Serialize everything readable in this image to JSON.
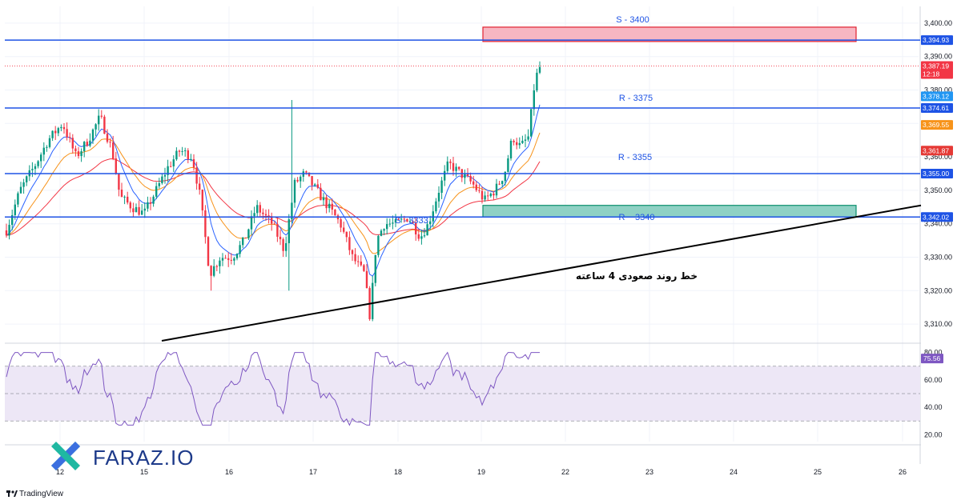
{
  "branding": {
    "logo_text": "FARAZ.IO",
    "platform": "TradingView"
  },
  "colors": {
    "level_line": "#1e53e5",
    "trendline": "#000000",
    "supply_fill": "#f7b6c2",
    "supply_border": "#e0202f",
    "demand_fill": "#8fd1c4",
    "demand_border": "#0b8f6d",
    "rsi": "#7e57c2",
    "rsi_band": "#ede7f6",
    "candle_up": "#089981",
    "candle_down": "#f23645",
    "ma_fast": "#2962ff",
    "ma_mid": "#f7931a",
    "ma_slow": "#f23645"
  },
  "chart_data": [
    {
      "type": "candlestick",
      "timeframe": "4h",
      "x_dates": [
        "12",
        "15",
        "16",
        "17",
        "18",
        "19",
        "22",
        "23",
        "24",
        "25",
        "26"
      ],
      "ylim": [
        3305,
        3405
      ],
      "y_ticks": [
        "3,310.00",
        "3,320.00",
        "3,330.00",
        "3,340.00",
        "3,350.00",
        "3,360.00",
        "3,370.00",
        "3,380.00",
        "3,390.00",
        "3,400.00"
      ],
      "grid": true,
      "levels": [
        {
          "label": "S - 3400",
          "value": 3400
        },
        {
          "label": "R - 3375",
          "value": 3375
        },
        {
          "label": "R - 3355",
          "value": 3355
        },
        {
          "label": "R ~ 3340",
          "value": 3340
        },
        {
          "label": "S - 3333",
          "value": 3333
        }
      ],
      "zones": [
        {
          "kind": "supply",
          "from": 3394.5,
          "to": 3398.8,
          "start": "19",
          "end": "25"
        },
        {
          "kind": "demand",
          "from": 3342,
          "to": 3345.5,
          "start": "19",
          "end": "25"
        }
      ],
      "trendline": {
        "label": "خط روند صعودی 4 ساعته",
        "from": {
          "date": "15",
          "value": 3305
        },
        "to": {
          "date": "26",
          "value": 3345.5
        }
      },
      "price_labels": [
        {
          "value": "3,394.93",
          "color": "#1e53e5"
        },
        {
          "value": "3,387.19",
          "sub": "12:18",
          "color": "#f23645"
        },
        {
          "value": "3,378.12",
          "color": "#2196f3"
        },
        {
          "value": "3,374.61",
          "color": "#1e53e5"
        },
        {
          "value": "3,369.55",
          "color": "#f7931a"
        },
        {
          "value": "3,361.87",
          "color": "#e53935"
        },
        {
          "value": "3,355.00",
          "color": "#1e53e5"
        },
        {
          "value": "3,342.02",
          "color": "#1e53e5"
        }
      ],
      "last_price": 3387.19
    },
    {
      "type": "line",
      "indicator": "RSI",
      "ylim": [
        15,
        85
      ],
      "y_ticks": [
        "20.00",
        "40.00",
        "60.00",
        "80.00"
      ],
      "band": [
        30,
        70
      ],
      "midline": 50,
      "last_value": "75.56"
    }
  ]
}
